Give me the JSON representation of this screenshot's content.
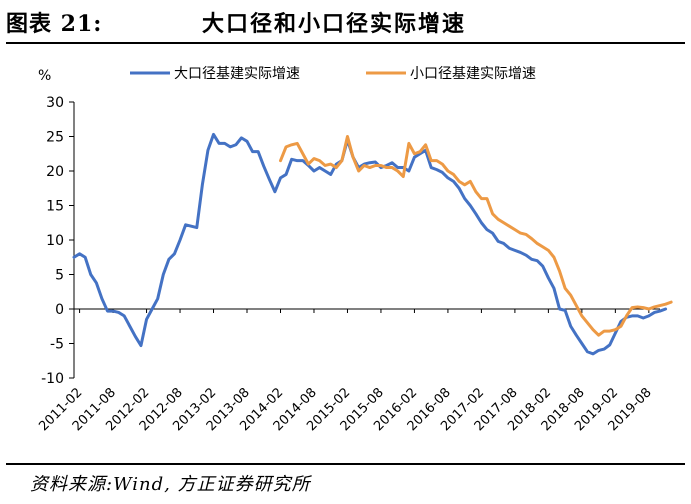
{
  "header": {
    "figure_label": "图表 21:",
    "title": "大口径和小口径实际增速"
  },
  "footer": {
    "source": "资料来源:Wind, 方正证券研究所"
  },
  "colors": {
    "large_caliber": "#4472C4",
    "small_caliber": "#ED9A45",
    "axis": "#000000"
  },
  "chart_data": {
    "type": "line",
    "title": "大口径和小口径实际增速",
    "ylabel": "%",
    "xlabel": "",
    "ylim": [
      -10,
      30
    ],
    "yticks": [
      30,
      25,
      20,
      15,
      10,
      5,
      0,
      -5,
      -10
    ],
    "grid": false,
    "legend_position": "top",
    "x_tick_labels": [
      "2011-02",
      "2011-08",
      "2012-02",
      "2012-08",
      "2013-02",
      "2013-08",
      "2014-02",
      "2014-08",
      "2015-02",
      "2015-08",
      "2016-02",
      "2016-08",
      "2017-02",
      "2017-08",
      "2018-02",
      "2018-08",
      "2019-02",
      "2019-08"
    ],
    "x_start": "2011-01",
    "x_end": "2019-10",
    "series": [
      {
        "name": "大口径基建实际增速",
        "color": "#4472C4",
        "start": "2011-01",
        "values": [
          7.5,
          8.0,
          7.5,
          5.0,
          3.8,
          1.5,
          -0.3,
          -0.3,
          -0.5,
          -1.0,
          -2.5,
          -4.0,
          -5.3,
          -1.5,
          0.0,
          1.5,
          5.0,
          7.2,
          8.0,
          10.0,
          12.2,
          12.0,
          11.8,
          18.0,
          23.0,
          25.3,
          24.0,
          24.0,
          23.5,
          23.8,
          24.8,
          24.3,
          22.8,
          22.8,
          20.7,
          18.8,
          17.0,
          19.0,
          19.5,
          21.7,
          21.5,
          21.5,
          20.8,
          20.0,
          20.5,
          20.0,
          19.5,
          21.0,
          21.5,
          24.5,
          22.0,
          20.5,
          21.0,
          21.2,
          21.3,
          20.5,
          20.8,
          21.2,
          20.5,
          20.5,
          20.0,
          22.0,
          22.5,
          23.0,
          20.5,
          20.2,
          19.8,
          19.0,
          18.5,
          17.5,
          16.0,
          15.0,
          13.8,
          12.5,
          11.5,
          11.0,
          9.8,
          9.5,
          8.8,
          8.5,
          8.2,
          7.8,
          7.2,
          7.0,
          6.2,
          4.5,
          3.0,
          0.0,
          -0.2,
          -2.5,
          -3.8,
          -5.0,
          -6.2,
          -6.5,
          -6.0,
          -5.8,
          -5.2,
          -3.5,
          -1.8,
          -1.2,
          -1.0,
          -1.0,
          -1.3,
          -1.0,
          -0.5,
          -0.3,
          0.0
        ]
      },
      {
        "name": "小口径基建实际增速",
        "color": "#ED9A45",
        "start": "2014-02",
        "values": [
          21.5,
          23.5,
          23.8,
          24.0,
          22.5,
          21.0,
          21.8,
          21.5,
          20.8,
          21.0,
          20.5,
          21.5,
          25.0,
          22.0,
          20.0,
          20.8,
          20.5,
          20.8,
          20.8,
          20.5,
          20.5,
          20.0,
          19.2,
          24.0,
          22.5,
          22.8,
          23.8,
          21.5,
          21.5,
          21.0,
          20.0,
          19.5,
          18.5,
          18.0,
          18.5,
          17.0,
          16.0,
          16.0,
          13.8,
          13.0,
          12.5,
          12.0,
          11.5,
          11.0,
          10.8,
          10.2,
          9.5,
          9.0,
          8.5,
          7.5,
          5.5,
          3.0,
          2.0,
          0.5,
          -1.0,
          -2.0,
          -3.0,
          -3.8,
          -3.2,
          -3.2,
          -3.0,
          -2.5,
          -1.0,
          0.2,
          0.3,
          0.2,
          0.0,
          0.3,
          0.5,
          0.7,
          1.0
        ]
      }
    ]
  }
}
